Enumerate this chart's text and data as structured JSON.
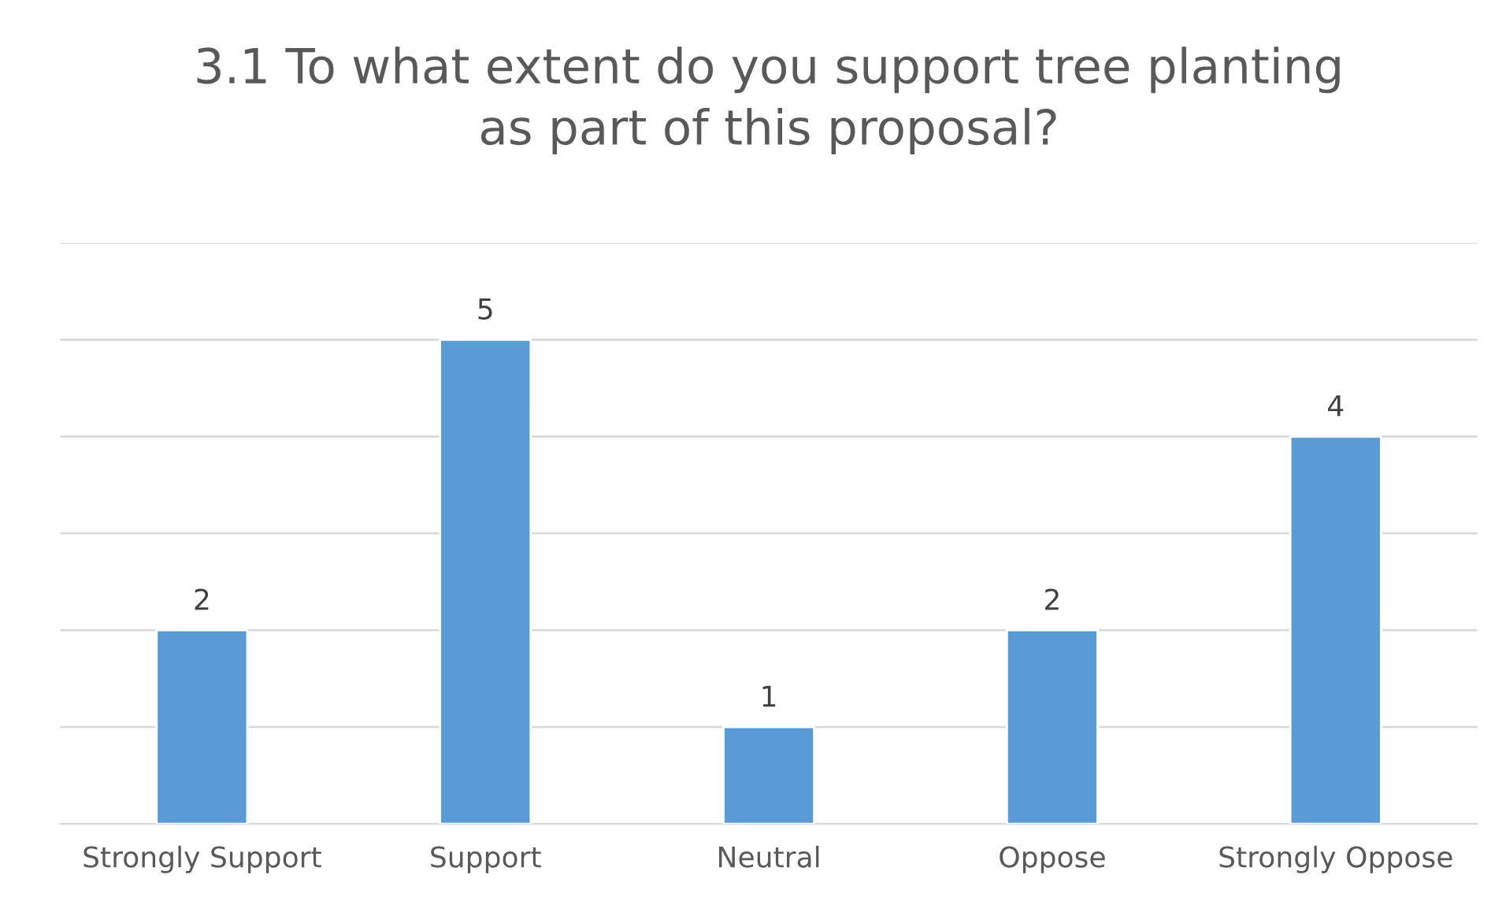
{
  "chart_data": {
    "type": "bar",
    "title": "3.1 To what extent do you support tree planting\nas part of this proposal?",
    "categories": [
      "Strongly Support",
      "Support",
      "Neutral",
      "Oppose",
      "Strongly Oppose"
    ],
    "values": [
      2,
      5,
      1,
      2,
      4
    ],
    "color": "#5b9bd5",
    "ylim": [
      0,
      6
    ],
    "yticks": [
      {
        "value": 0,
        "label": null
      },
      {
        "value": 1,
        "label": null
      },
      {
        "value": 2,
        "label": null
      },
      {
        "value": 3,
        "label": null
      },
      {
        "value": 4,
        "label": null
      },
      {
        "value": 5,
        "label": null
      },
      {
        "value": 6,
        "label": null
      }
    ],
    "tick_labels": "x",
    "grid": "y",
    "data_labels": true
  }
}
